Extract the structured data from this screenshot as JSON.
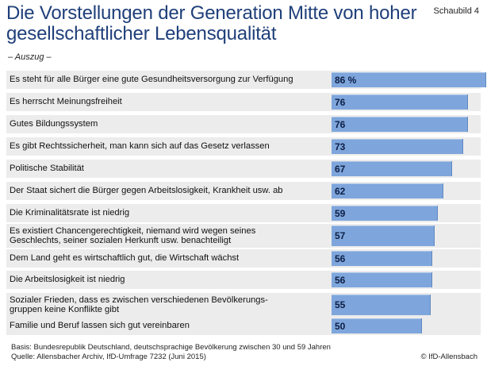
{
  "header": {
    "title": "Die Vorstellungen der Generation Mitte von hoher gesellschaftlicher Lebensqualität",
    "figure_label": "Schaubild 4",
    "subtitle": "– Auszug –"
  },
  "footer": {
    "basis": "Basis: Bundesrepublik Deutschland, deutschsprachige Bevölkerung zwischen 30 und 59 Jahren\nQuelle: Allensbacher Archiv, IfD-Umfrage 7232 (Juni 2015)",
    "copyright": "© IfD-Allensbach"
  },
  "chart_data": {
    "type": "bar",
    "orientation": "horizontal",
    "title": "Die Vorstellungen der Generation Mitte von hoher gesellschaftlicher Lebensqualität",
    "unit_suffix_first": " %",
    "ylim": [
      0,
      86
    ],
    "categories": [
      "Es steht für alle Bürger eine gute Gesundheitsversorgung zur Verfügung",
      "Es herrscht Meinungsfreiheit",
      "Gutes Bildungssystem",
      "Es gibt Rechtssicherheit, man kann sich auf das Gesetz verlassen",
      "Politische Stabilität",
      "Der Staat sichert die Bürger gegen Arbeitslosigkeit, Krankheit usw. ab",
      "Die Kriminalitätsrate ist niedrig",
      "Es existiert Chancengerechtigkeit, niemand wird wegen seines\nGeschlechts, seiner sozialen Herkunft usw. benachteiligt",
      "Dem Land geht es wirtschaftlich gut, die Wirtschaft wächst",
      "Die Arbeitslosigkeit ist niedrig",
      "Sozialer Frieden, dass es zwischen verschiedenen Bevölkerungs-\ngruppen keine Konflikte gibt",
      "Familie und Beruf lassen sich gut vereinbaren"
    ],
    "values": [
      86,
      76,
      76,
      73,
      67,
      62,
      59,
      57,
      56,
      56,
      55,
      50
    ],
    "colors": {
      "bar": "#7ea6dc",
      "row_bg": "#ececec",
      "title": "#1f3f7a"
    }
  }
}
